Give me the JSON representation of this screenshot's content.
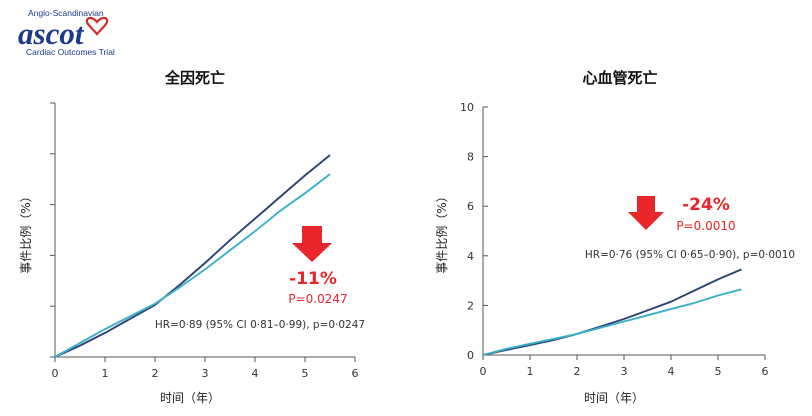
{
  "logo": {
    "line1": "Anglo-Scandinavian",
    "word": "ascot",
    "line3": "Cardiac Outcomes Trial",
    "colors": {
      "blue": "#1a3a8f",
      "red": "#d42a2a"
    }
  },
  "colors": {
    "series_dark": "#2c4373",
    "series_light": "#3ab0c8",
    "highlight_red": "#e8262a",
    "axis": "#555555"
  },
  "chart_data": [
    {
      "type": "line",
      "title": "全因死亡",
      "xlabel": "时间（年）",
      "ylabel": "事件比例（%）",
      "xlim": [
        0,
        6
      ],
      "ylim": [
        0,
        10
      ],
      "xticks": [
        0,
        1,
        2,
        3,
        4,
        5,
        6
      ],
      "yticks": [
        0,
        2,
        4,
        6,
        8,
        10
      ],
      "show_yticklabels": false,
      "grid": false,
      "series": [
        {
          "x": [
            0,
            0.5,
            1,
            1.5,
            2,
            2.5,
            3,
            3.5,
            4,
            4.5,
            5,
            5.5
          ],
          "y": [
            0,
            0.45,
            0.95,
            1.5,
            2.05,
            2.85,
            3.7,
            4.6,
            5.45,
            6.3,
            7.15,
            7.95
          ]
        },
        {
          "x": [
            0,
            0.5,
            1,
            1.5,
            2,
            2.5,
            3,
            3.5,
            4,
            4.5,
            5,
            5.5
          ],
          "y": [
            0,
            0.55,
            1.1,
            1.6,
            2.1,
            2.75,
            3.45,
            4.2,
            4.95,
            5.75,
            6.45,
            7.2
          ]
        }
      ],
      "annotations": {
        "hr_text": "HR=0·89 (95% CI 0·81–0·99), p=0·0247",
        "reduction": "-11%",
        "p_value": "P=0.0247"
      }
    },
    {
      "type": "line",
      "title": "心血管死亡",
      "xlabel": "时间（年）",
      "ylabel": "事件比例（%）",
      "xlim": [
        0,
        6
      ],
      "ylim": [
        0,
        10
      ],
      "xticks": [
        0,
        1,
        2,
        3,
        4,
        5,
        6
      ],
      "yticks": [
        0,
        2,
        4,
        6,
        8,
        10
      ],
      "show_yticklabels": true,
      "grid": false,
      "series": [
        {
          "x": [
            0,
            0.5,
            1,
            1.5,
            2,
            2.5,
            3,
            3.5,
            4,
            4.5,
            5,
            5.5
          ],
          "y": [
            0,
            0.2,
            0.4,
            0.6,
            0.85,
            1.15,
            1.45,
            1.8,
            2.15,
            2.6,
            3.05,
            3.45
          ]
        },
        {
          "x": [
            0,
            0.5,
            1,
            1.5,
            2,
            2.5,
            3,
            3.5,
            4,
            4.5,
            5,
            5.5
          ],
          "y": [
            0,
            0.25,
            0.45,
            0.65,
            0.85,
            1.1,
            1.35,
            1.6,
            1.85,
            2.1,
            2.4,
            2.65
          ]
        }
      ],
      "annotations": {
        "hr_text": "HR=0·76 (95% CI 0·65–0·90), p=0·0010",
        "reduction": "-24%",
        "p_value": "P=0.0010"
      }
    }
  ]
}
